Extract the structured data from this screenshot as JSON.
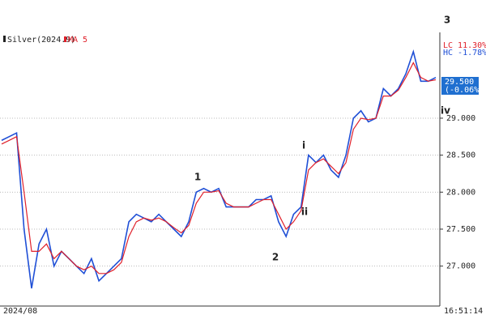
{
  "chart_data": {
    "type": "line",
    "title": "Silver(2024.9)",
    "categories": [
      "2024/08",
      null,
      null,
      null,
      null,
      null,
      null,
      null,
      null,
      null,
      null,
      null,
      null,
      null,
      null,
      null,
      null,
      null,
      null,
      null,
      null,
      null,
      null,
      null,
      null,
      null,
      null,
      null,
      null,
      null,
      null,
      null,
      null,
      null,
      null,
      null,
      null,
      null,
      null,
      null,
      null,
      null,
      null,
      null,
      null,
      null,
      null,
      null,
      null,
      null,
      null,
      null,
      null,
      null,
      null,
      null,
      null,
      null,
      null
    ],
    "series": [
      {
        "name": "Silver(2024.9)",
        "color": "#1f4fd6",
        "values": [
          28.7,
          28.75,
          28.8,
          27.5,
          26.7,
          27.3,
          27.5,
          27.0,
          27.2,
          27.1,
          27.0,
          26.9,
          27.1,
          26.8,
          26.9,
          27.0,
          27.1,
          27.6,
          27.7,
          27.65,
          27.6,
          27.7,
          27.6,
          27.5,
          27.4,
          27.6,
          28.0,
          28.05,
          28.0,
          28.05,
          27.8,
          27.8,
          27.8,
          27.8,
          27.9,
          27.9,
          27.95,
          27.6,
          27.4,
          27.7,
          27.8,
          28.5,
          28.4,
          28.5,
          28.3,
          28.2,
          28.5,
          29.0,
          29.1,
          28.95,
          29.0,
          29.4,
          29.3,
          29.4,
          29.6,
          29.9,
          29.5,
          29.5,
          29.55
        ]
      },
      {
        "name": "MA 5",
        "color": "#e0202a",
        "values": [
          28.65,
          28.7,
          28.75,
          28.0,
          27.2,
          27.2,
          27.3,
          27.1,
          27.2,
          27.1,
          27.0,
          26.95,
          27.0,
          26.9,
          26.9,
          26.95,
          27.05,
          27.4,
          27.6,
          27.65,
          27.62,
          27.65,
          27.6,
          27.52,
          27.45,
          27.55,
          27.85,
          28.0,
          28.0,
          28.02,
          27.85,
          27.8,
          27.8,
          27.8,
          27.85,
          27.9,
          27.9,
          27.7,
          27.5,
          27.6,
          27.75,
          28.3,
          28.4,
          28.45,
          28.35,
          28.25,
          28.4,
          28.85,
          29.0,
          28.98,
          29.0,
          29.3,
          29.3,
          29.38,
          29.55,
          29.75,
          29.55,
          29.5,
          29.52
        ]
      }
    ],
    "ylim": [
      26.46,
      30.16
    ],
    "yticks": [
      {
        "value": 27,
        "label": "27.000"
      },
      {
        "value": 27.5,
        "label": "27.500"
      },
      {
        "value": 28,
        "label": "28.000"
      },
      {
        "value": 28.5,
        "label": "28.500"
      },
      {
        "value": 29,
        "label": "29.000"
      }
    ],
    "grid": true,
    "annotations": [
      "1",
      "2",
      "3",
      "i",
      "ii",
      "iv"
    ],
    "lc": "LC  11.30%",
    "hc": "HC  -1.78%",
    "last_price": "29.500",
    "last_change": "(-0.06%)",
    "time": "16:51:14"
  }
}
